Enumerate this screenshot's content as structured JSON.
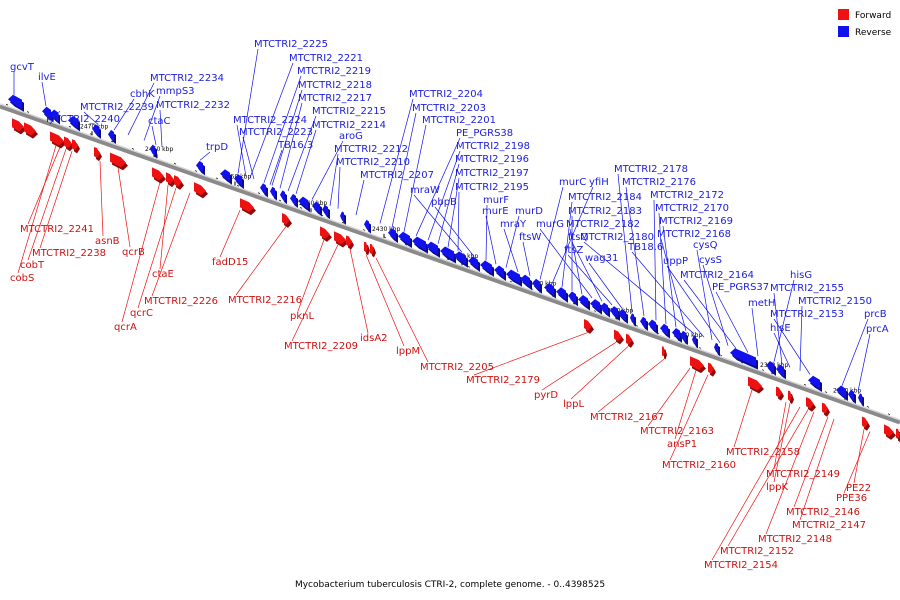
{
  "caption": "Mycobacterium tuberculosis CTRI-2, complete genome. - 0..4398525",
  "legend": {
    "forward_label": "Forward",
    "reverse_label": "Reverse",
    "forward_color": "#ee1111",
    "reverse_color": "#1111ee"
  },
  "colors": {
    "forward": "#ee1111",
    "reverse": "#1111ee",
    "backbone": "#8a8a8a"
  },
  "ticks": [
    "2470 kbp",
    "2460 kbp",
    "2450 kbp",
    "2440 kbp",
    "2430 kbp",
    "2420 kbp",
    "2410 kbp",
    "2400 kbp",
    "2390 kbp",
    "2380 kbp",
    "2370 kbp"
  ],
  "labels_reverse": [
    "gcvT",
    "ilvE",
    "MTCTRI2_2240",
    "MTCTRI2_2239",
    "cbhK",
    "MTCTRI2_2234",
    "mmpS3",
    "MTCTRI2_2232",
    "ctaC",
    "trpD",
    "MTCTRI2_2225",
    "MTCTRI2_2221",
    "MTCTRI2_2219",
    "MTCTRI2_2218",
    "MTCTRI2_2217",
    "MTCTRI2_2215",
    "MTCTRI2_2214",
    "MTCTRI2_2224",
    "MTCTRI2_2223",
    "aroG",
    "TB16.3",
    "MTCTRI2_2212",
    "MTCTRI2_2210",
    "MTCTRI2_2207",
    "MTCTRI2_2204",
    "MTCTRI2_2203",
    "MTCTRI2_2201",
    "PE_PGRS38",
    "MTCTRI2_2198",
    "MTCTRI2_2196",
    "MTCTRI2_2197",
    "MTCTRI2_2195",
    "mraW",
    "pbpB",
    "murF",
    "murE",
    "murD",
    "mraY",
    "ftsW",
    "murC",
    "yfiH",
    "MTCTRI2_2184",
    "MTCTRI2_2183",
    "MTCTRI2_2182",
    "murG",
    "ftsQ",
    "ftsZ",
    "wag31",
    "MTCTRI2_2178",
    "MTCTRI2_2176",
    "MTCTRI2_2172",
    "MTCTRI2_2170",
    "MTCTRI2_2169",
    "MTCTRI2_2168",
    "MTCTRI2_2180",
    "TB18.6",
    "cysQ",
    "uppP",
    "cysS",
    "MTCTRI2_2164",
    "PE_PGRS37",
    "metH",
    "hisG",
    "MTCTRI2_2155",
    "MTCTRI2_2150",
    "hisE",
    "MTCTRI2_2153",
    "prcB",
    "prcA"
  ],
  "labels_forward": [
    "MTCTRI2_2241",
    "MTCTRI2_2238",
    "cobT",
    "cobS",
    "asnB",
    "qcrB",
    "ctaE",
    "qcrC",
    "qcrA",
    "MTCTRI2_2226",
    "fadD15",
    "MTCTRI2_2216",
    "pknL",
    "MTCTRI2_2209",
    "idsA2",
    "lppM",
    "MTCTRI2_2205",
    "MTCTRI2_2179",
    "pyrD",
    "lppL",
    "MTCTRI2_2167",
    "MTCTRI2_2163",
    "ansP1",
    "MTCTRI2_2160",
    "MTCTRI2_2158",
    "MTCTRI2_2149",
    "lppK",
    "PE22",
    "PPE36",
    "MTCTRI2_2146",
    "MTCTRI2_2147",
    "MTCTRI2_2148",
    "MTCTRI2_2152",
    "MTCTRI2_2154"
  ]
}
